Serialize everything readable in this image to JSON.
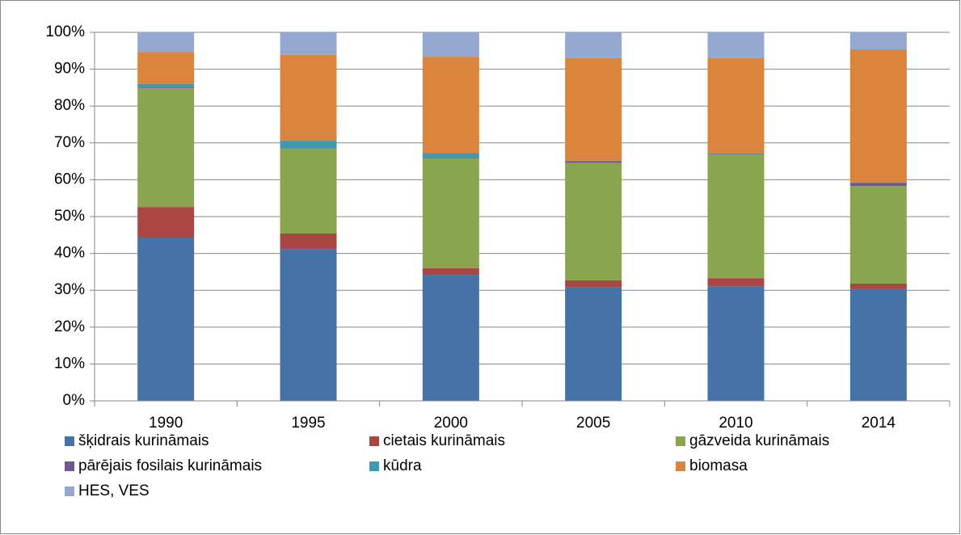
{
  "chart_data": {
    "type": "stacked_bar",
    "categories": [
      "1990",
      "1995",
      "2000",
      "2005",
      "2010",
      "2014"
    ],
    "series": [
      {
        "name": "šķidrais kurināmais",
        "color": "#4572a7",
        "values": [
          44.3,
          41.2,
          34.2,
          30.9,
          31.1,
          30.3
        ]
      },
      {
        "name": "cietais kurināmais",
        "color": "#aa4643",
        "values": [
          8.3,
          4.2,
          1.8,
          1.8,
          2.2,
          1.5
        ]
      },
      {
        "name": "gāzveida kurināmais",
        "color": "#89a54e",
        "values": [
          32.3,
          23.0,
          29.8,
          31.9,
          33.6,
          26.5
        ]
      },
      {
        "name": "pārējais fosilais kurināmais",
        "color": "#71588f",
        "values": [
          0.2,
          0.1,
          0.1,
          0.5,
          0.1,
          0.8
        ]
      },
      {
        "name": "kūdra",
        "color": "#4198af",
        "values": [
          0.9,
          2.1,
          1.4,
          0.1,
          0.1,
          0.1
        ]
      },
      {
        "name": "biomasa",
        "color": "#db843d",
        "values": [
          8.7,
          23.3,
          26.1,
          27.8,
          25.9,
          36.2
        ]
      },
      {
        "name": "HES, VES",
        "color": "#93a9cf",
        "values": [
          5.3,
          6.1,
          6.6,
          7.0,
          7.0,
          4.6
        ]
      }
    ],
    "ylim": [
      0,
      100
    ],
    "yticks": [
      {
        "value": 0,
        "label": "0%"
      },
      {
        "value": 10,
        "label": "10%"
      },
      {
        "value": 20,
        "label": "20%"
      },
      {
        "value": 30,
        "label": "30%"
      },
      {
        "value": 40,
        "label": "40%"
      },
      {
        "value": 50,
        "label": "50%"
      },
      {
        "value": 60,
        "label": "60%"
      },
      {
        "value": 70,
        "label": "70%"
      },
      {
        "value": 80,
        "label": "80%"
      },
      {
        "value": 90,
        "label": "90%"
      },
      {
        "value": 100,
        "label": "100%"
      }
    ],
    "grid": true,
    "legend": "bottom"
  }
}
